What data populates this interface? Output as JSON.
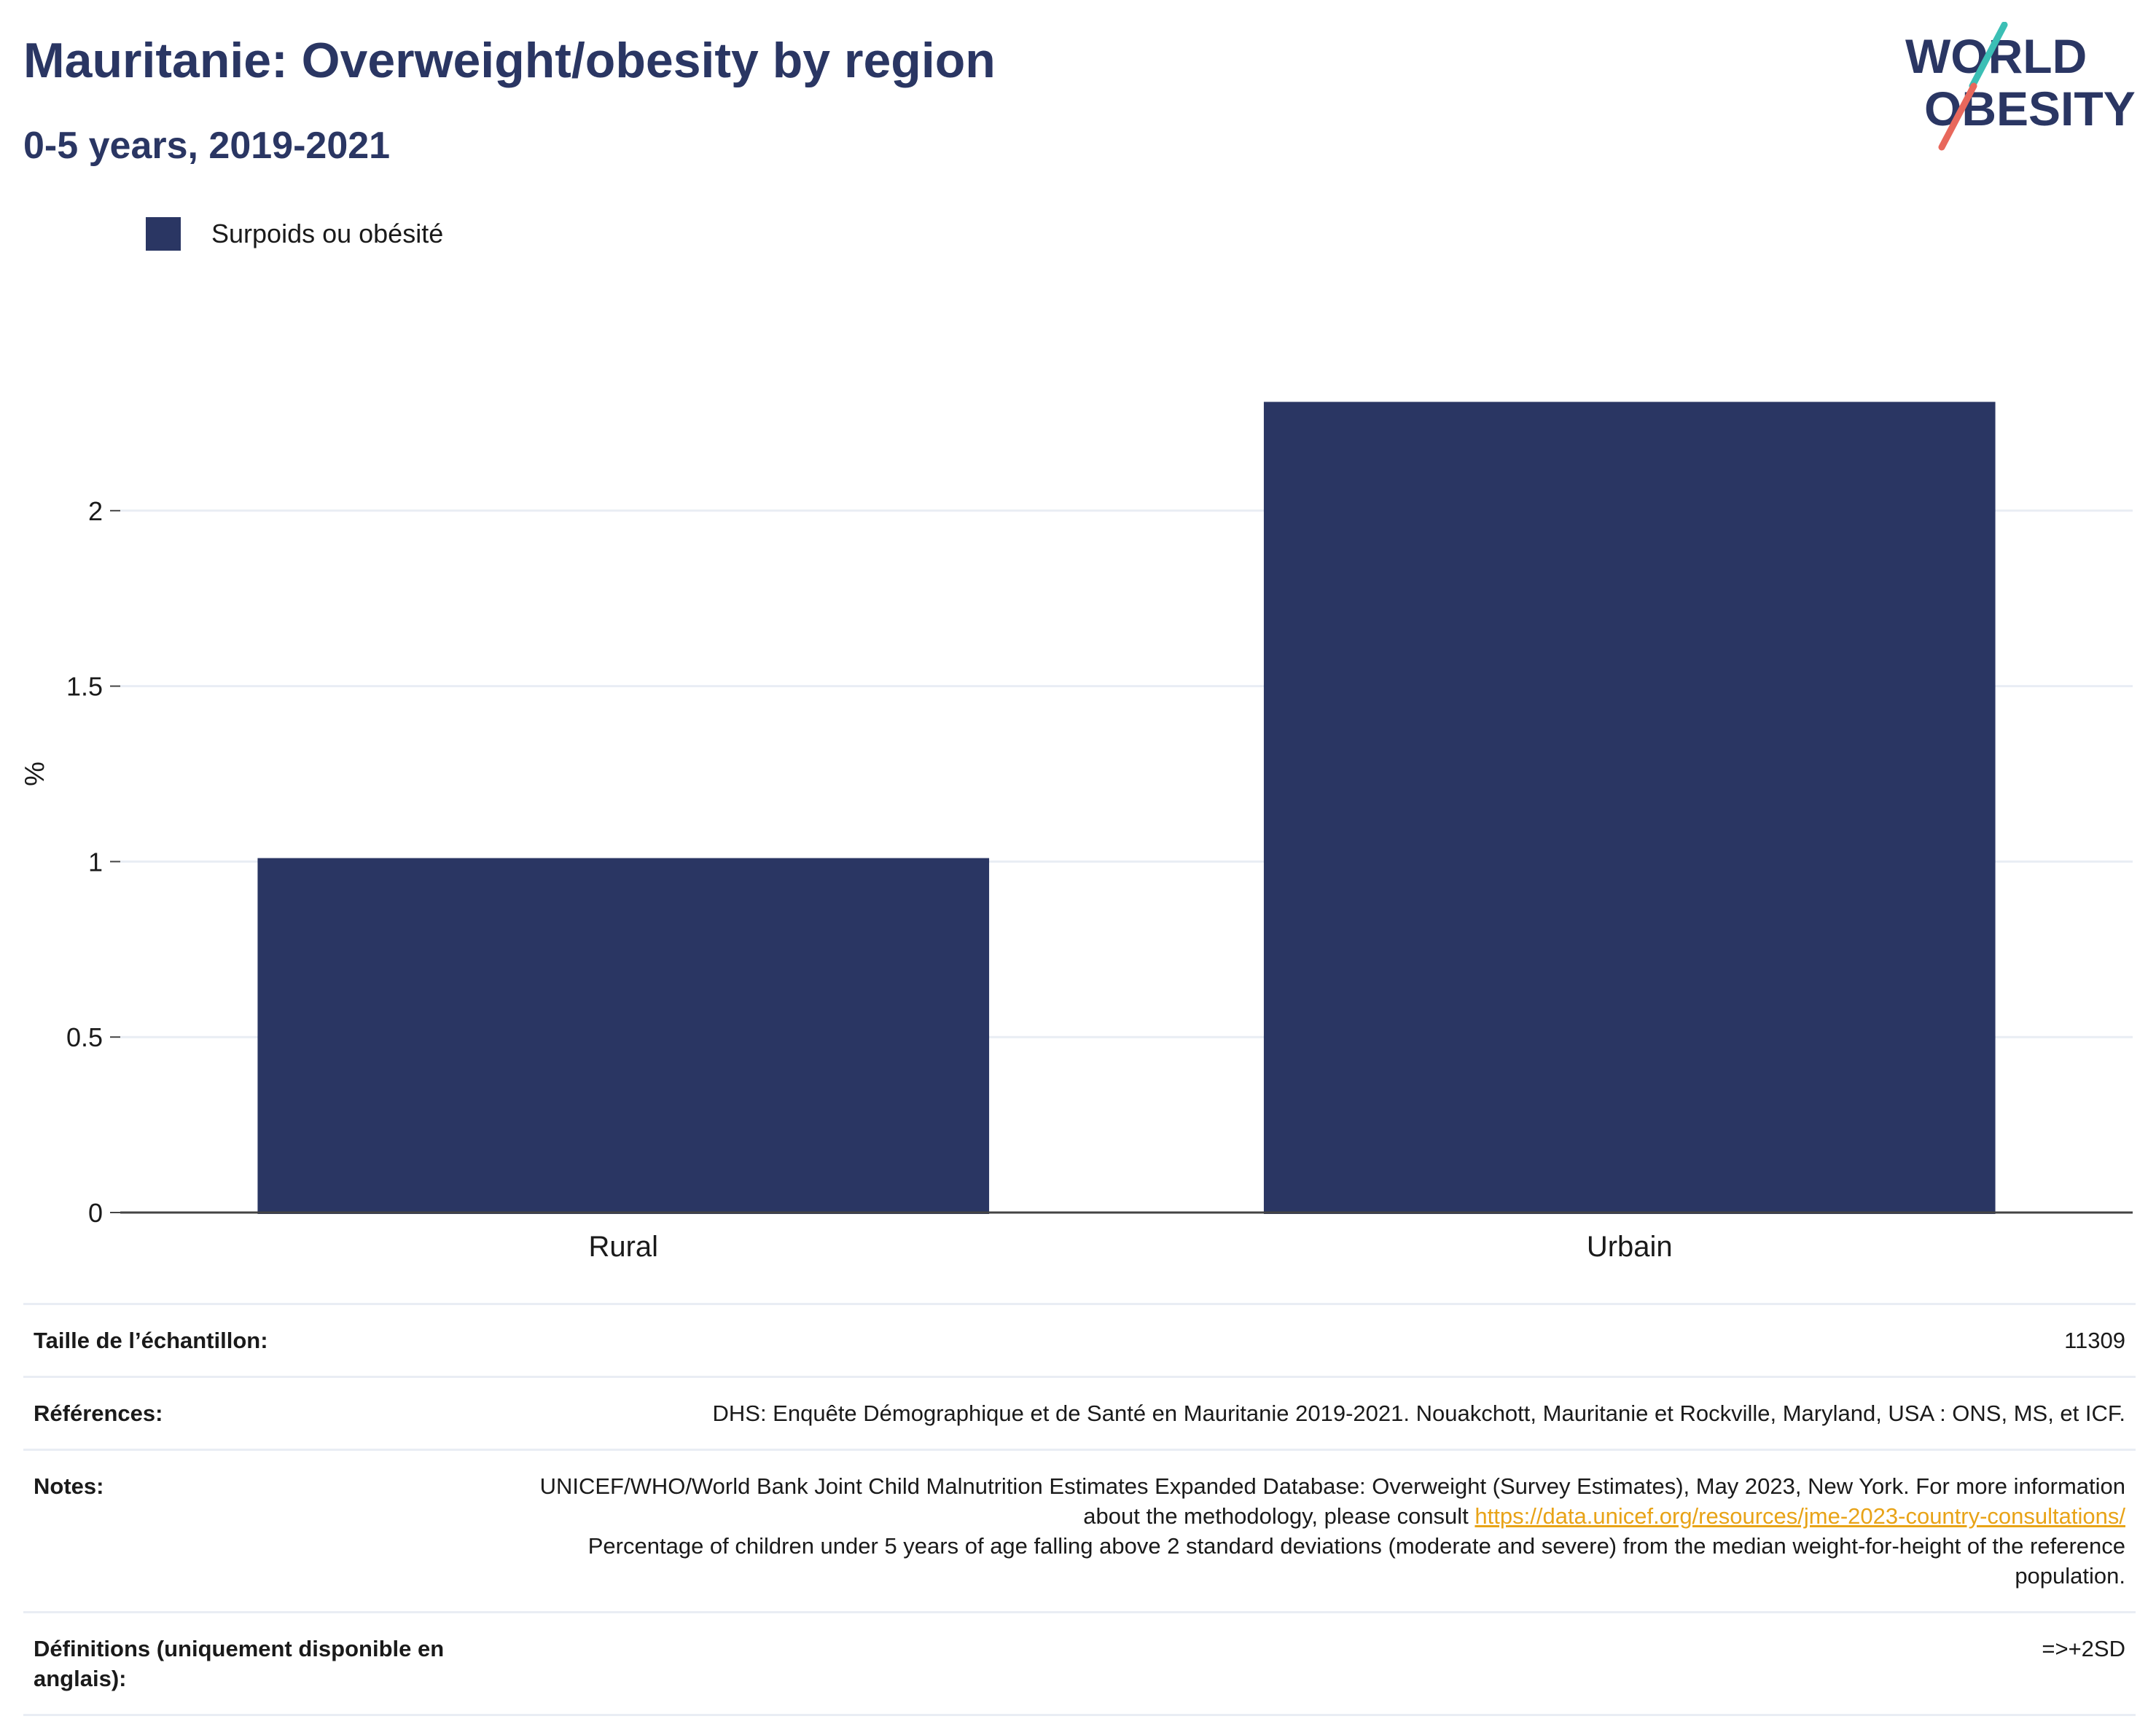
{
  "header": {
    "title": "Mauritanie: Overweight/obesity by region",
    "subtitle": "0-5 years, 2019-2021"
  },
  "logo": {
    "line1": "WORLD",
    "line2": "OBESITY"
  },
  "colors": {
    "bar": "#2a3663",
    "title": "#2a3663",
    "link": "#e8a317",
    "logo_teal": "#3bbfb5",
    "logo_coral": "#e8685c"
  },
  "chart_data": {
    "type": "bar",
    "categories": [
      "Rural",
      "Urbain"
    ],
    "series": [
      {
        "name": "Surpoids ou obésité",
        "values": [
          1.01,
          2.31
        ]
      }
    ],
    "ylabel": "%",
    "xlabel": "",
    "ylim": [
      0,
      2.5
    ],
    "yticks": [
      0,
      0.5,
      1,
      1.5,
      2
    ],
    "ytick_labels": [
      "0",
      "0.5",
      "1",
      "1.5",
      "2"
    ],
    "grid": true,
    "legend_position": "top-left"
  },
  "table": {
    "sample_label": "Taille de l’échantillon:",
    "sample_value": "11309",
    "references_label": "Références:",
    "references_value": "DHS: Enquête Démographique et de Santé en Mauritanie 2019-2021. Nouakchott, Mauritanie et Rockville, Maryland, USA : ONS, MS, et ICF.",
    "notes_label": "Notes:",
    "notes_text_1": "UNICEF/WHO/World Bank Joint Child Malnutrition Estimates Expanded Database: Overweight (Survey Estimates), May 2023, New York. For more information about the methodology, please consult ",
    "notes_link": "https://data.unicef.org/resources/jme-2023-country-consultations/",
    "notes_text_2": "Percentage of children under 5 years of age falling above 2 standard deviations (moderate and severe) from the median weight-for-height of the reference population.",
    "definitions_label": "Définitions (uniquement disponible en anglais):",
    "definitions_value": "=>+2SD"
  }
}
